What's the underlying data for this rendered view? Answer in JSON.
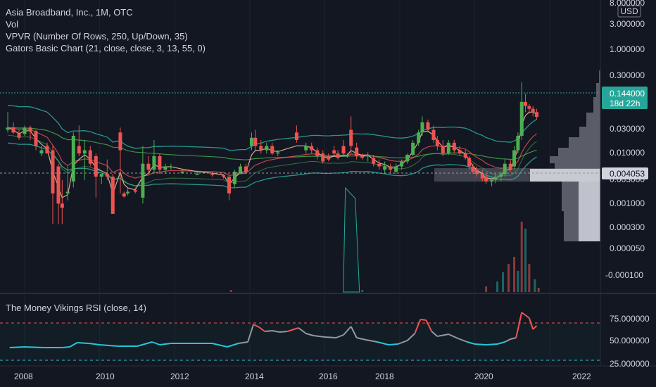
{
  "header": {
    "symbol_line": "Asia Broadband, Inc., 1M, OTC",
    "vol": "Vol",
    "vpvr": "VPVR (Number Of Rows, 250, Up/Down, 35)",
    "gators": "Gators Basic Chart (21, close, close, 3, 13, 55, 0)"
  },
  "price_axis": {
    "currency": "USD",
    "ticks": [
      "8.000000",
      "3.000000",
      "1.000000",
      "0.300000",
      "0.030000",
      "0.010000",
      "0.003000",
      "0.001000",
      "0.000300",
      "0.000050",
      "-0.000100"
    ],
    "current_price": "0.144000",
    "countdown": "18d 22h",
    "crosshair_price": "0.004053"
  },
  "time_axis": {
    "ticks": [
      "2008",
      "2010",
      "2012",
      "2014",
      "2016",
      "2018",
      "2020",
      "2022"
    ]
  },
  "rsi_pane": {
    "title": "The Money Vikings RSI (close, 14)",
    "ticks": [
      "75.000000",
      "50.000000",
      "25.000000"
    ]
  },
  "colors": {
    "background": "#131722",
    "up": "#26a69a",
    "up_bright": "#4caf50",
    "down": "#ef5350",
    "current_price_badge": "#26a69a",
    "crosshair_badge": "#d1d4dc"
  },
  "chart_data": {
    "type": "candlestick",
    "scale": "log",
    "x_range": [
      2007.5,
      2022.5
    ],
    "y_ticks": [
      8,
      3,
      1,
      0.3,
      0.03,
      0.01,
      0.003,
      0.001,
      0.0003,
      5e-05
    ],
    "candles": [
      [
        2007.55,
        0.06,
        0.2,
        0.07,
        0.05
      ],
      [
        2007.7,
        0.07,
        0.1,
        0.05,
        0.045
      ],
      [
        2007.85,
        0.045,
        0.06,
        0.035,
        0.03
      ],
      [
        2008.0,
        0.045,
        0.08,
        0.07,
        0.04
      ],
      [
        2008.15,
        0.07,
        0.08,
        0.055,
        0.03
      ],
      [
        2008.3,
        0.055,
        0.06,
        0.02,
        0.015
      ],
      [
        2008.45,
        0.012,
        0.02,
        0.015,
        0.01
      ],
      [
        2008.6,
        0.02,
        0.025,
        0.012,
        0.012
      ],
      [
        2008.75,
        0.015,
        0.02,
        0.0008,
        0.0001
      ],
      [
        2008.9,
        0.005,
        0.006,
        0.0004,
        0.0001
      ],
      [
        2009.0,
        0.0004,
        0.002,
        0.0003,
        0.0001
      ],
      [
        2009.15,
        0.0008,
        0.005,
        0.0009,
        0.0005
      ],
      [
        2009.3,
        0.0018,
        0.05,
        0.04,
        0.0012
      ],
      [
        2009.45,
        0.02,
        0.08,
        0.012,
        0.01
      ],
      [
        2009.6,
        0.012,
        0.03,
        0.015,
        0.002
      ],
      [
        2009.75,
        0.015,
        0.02,
        0.006,
        0.005
      ],
      [
        2009.9,
        0.01,
        0.012,
        0.0025,
        0.0006
      ],
      [
        2010.05,
        0.0025,
        0.003,
        0.003,
        0.0015
      ],
      [
        2010.2,
        0.003,
        0.008,
        0.0025,
        0.002
      ],
      [
        2010.35,
        0.0025,
        0.003,
        0.0002,
        0.0002
      ],
      [
        2010.55,
        0.05,
        0.07,
        0.015,
        0.0008
      ],
      [
        2010.65,
        0.0008,
        0.0009,
        0.00065,
        0.0006
      ],
      [
        2010.75,
        0.0008,
        0.0011,
        0.0009,
        0.0007
      ],
      [
        2010.95,
        0.001,
        0.0012,
        0.0009,
        0.0008
      ],
      [
        2011.15,
        0.0006,
        0.02,
        0.006,
        0.0004
      ],
      [
        2011.3,
        0.006,
        0.01,
        0.004,
        0.003
      ],
      [
        2011.45,
        0.004,
        0.03,
        0.01,
        0.003
      ],
      [
        2011.6,
        0.01,
        0.012,
        0.004,
        0.003
      ],
      [
        2011.75,
        0.004,
        0.006,
        0.005,
        0.003
      ],
      [
        2011.9,
        0.005,
        0.006,
        0.005,
        0.004
      ],
      [
        2012.2,
        0.0035,
        0.004,
        0.0035,
        0.003
      ],
      [
        2012.6,
        0.003,
        0.0035,
        0.003,
        0.0028
      ],
      [
        2013.0,
        0.003,
        0.0035,
        0.0028,
        0.0025
      ],
      [
        2013.3,
        0.0028,
        0.003,
        0.0025,
        0.0022
      ],
      [
        2013.45,
        0.0025,
        0.0028,
        0.0008,
        0.0005
      ],
      [
        2013.6,
        0.0015,
        0.004,
        0.0035,
        0.0012
      ],
      [
        2013.75,
        0.003,
        0.006,
        0.005,
        0.003
      ],
      [
        2013.9,
        0.005,
        0.006,
        0.0035,
        0.003
      ],
      [
        2014.05,
        0.02,
        0.05,
        0.035,
        0.015
      ],
      [
        2014.15,
        0.035,
        0.06,
        0.02,
        0.015
      ],
      [
        2014.3,
        0.02,
        0.03,
        0.015,
        0.012
      ],
      [
        2014.45,
        0.015,
        0.025,
        0.02,
        0.012
      ],
      [
        2014.6,
        0.02,
        0.025,
        0.012,
        0.011
      ],
      [
        2014.75,
        0.012,
        0.015,
        0.013,
        0.01
      ],
      [
        2015.25,
        0.05,
        0.08,
        0.03,
        0.025
      ],
      [
        2015.5,
        0.015,
        0.025,
        0.02,
        0.012
      ],
      [
        2015.65,
        0.02,
        0.025,
        0.015,
        0.012
      ],
      [
        2015.8,
        0.015,
        0.018,
        0.01,
        0.008
      ],
      [
        2015.95,
        0.012,
        0.015,
        0.007,
        0.006
      ],
      [
        2016.1,
        0.01,
        0.012,
        0.008,
        0.007
      ],
      [
        2016.25,
        0.015,
        0.02,
        0.012,
        0.01
      ],
      [
        2016.35,
        0.012,
        0.015,
        0.009,
        0.008
      ],
      [
        2016.5,
        0.02,
        0.03,
        0.012,
        0.01
      ],
      [
        2016.6,
        0.01,
        0.012,
        0.011,
        0.009
      ],
      [
        2016.7,
        0.06,
        0.15,
        0.02,
        0.012
      ],
      [
        2016.85,
        0.018,
        0.025,
        0.01,
        0.008
      ],
      [
        2017.0,
        0.01,
        0.012,
        0.009,
        0.008
      ],
      [
        2017.15,
        0.01,
        0.013,
        0.011,
        0.007
      ],
      [
        2017.3,
        0.009,
        0.011,
        0.006,
        0.005
      ],
      [
        2017.45,
        0.006,
        0.008,
        0.005,
        0.004
      ],
      [
        2017.6,
        0.004,
        0.007,
        0.005,
        0.003
      ],
      [
        2017.75,
        0.005,
        0.006,
        0.004,
        0.003
      ],
      [
        2017.9,
        0.0035,
        0.006,
        0.005,
        0.003
      ],
      [
        2018.05,
        0.005,
        0.008,
        0.007,
        0.004
      ],
      [
        2018.2,
        0.007,
        0.012,
        0.011,
        0.006
      ],
      [
        2018.35,
        0.011,
        0.03,
        0.025,
        0.01
      ],
      [
        2018.5,
        0.025,
        0.06,
        0.05,
        0.02
      ],
      [
        2018.6,
        0.05,
        0.15,
        0.1,
        0.04
      ],
      [
        2018.75,
        0.1,
        0.12,
        0.06,
        0.05
      ],
      [
        2018.9,
        0.06,
        0.08,
        0.03,
        0.025
      ],
      [
        2019.0,
        0.03,
        0.04,
        0.02,
        0.015
      ],
      [
        2019.15,
        0.02,
        0.03,
        0.012,
        0.01
      ],
      [
        2019.3,
        0.012,
        0.03,
        0.025,
        0.011
      ],
      [
        2019.45,
        0.025,
        0.03,
        0.015,
        0.012
      ],
      [
        2019.6,
        0.015,
        0.02,
        0.012,
        0.01
      ],
      [
        2019.75,
        0.012,
        0.015,
        0.009,
        0.008
      ],
      [
        2019.85,
        0.009,
        0.01,
        0.005,
        0.004
      ],
      [
        2019.95,
        0.005,
        0.006,
        0.0035,
        0.003
      ],
      [
        2020.05,
        0.004,
        0.005,
        0.003,
        0.0025
      ],
      [
        2020.2,
        0.003,
        0.004,
        0.0022,
        0.0018
      ],
      [
        2020.3,
        0.0025,
        0.003,
        0.0018,
        0.0015
      ],
      [
        2020.45,
        0.0018,
        0.0025,
        0.002,
        0.0013
      ],
      [
        2020.55,
        0.002,
        0.003,
        0.0025,
        0.0016
      ],
      [
        2020.7,
        0.0025,
        0.0035,
        0.003,
        0.0018
      ],
      [
        2020.8,
        0.003,
        0.008,
        0.006,
        0.0025
      ],
      [
        2020.95,
        0.006,
        0.008,
        0.004,
        0.0035
      ],
      [
        2021.05,
        0.005,
        0.02,
        0.015,
        0.004
      ],
      [
        2021.15,
        0.015,
        0.05,
        0.04,
        0.012
      ],
      [
        2021.25,
        0.04,
        1.5,
        0.4,
        0.03
      ],
      [
        2021.35,
        0.4,
        0.7,
        0.3,
        0.2
      ],
      [
        2021.45,
        0.3,
        0.35,
        0.25,
        0.18
      ],
      [
        2021.55,
        0.25,
        0.3,
        0.2,
        0.15
      ],
      [
        2021.65,
        0.2,
        0.25,
        0.144,
        0.12
      ]
    ],
    "volume": [
      [
        2013.5,
        3
      ],
      [
        2016.7,
        148
      ],
      [
        2017.0,
        3
      ],
      [
        2020.3,
        8
      ],
      [
        2020.6,
        15
      ],
      [
        2020.75,
        28
      ],
      [
        2020.9,
        40
      ],
      [
        2021.05,
        50
      ],
      [
        2021.15,
        30
      ],
      [
        2021.25,
        100
      ],
      [
        2021.35,
        90
      ],
      [
        2021.45,
        40
      ],
      [
        2021.6,
        18
      ],
      [
        2021.7,
        6
      ]
    ],
    "rsi": [
      [
        2007.6,
        40
      ],
      [
        2008.0,
        41
      ],
      [
        2008.5,
        40
      ],
      [
        2009.0,
        40
      ],
      [
        2009.2,
        41
      ],
      [
        2009.4,
        47
      ],
      [
        2009.7,
        46
      ],
      [
        2010.0,
        44
      ],
      [
        2010.5,
        42
      ],
      [
        2011.0,
        42
      ],
      [
        2011.4,
        48
      ],
      [
        2011.6,
        44
      ],
      [
        2011.9,
        46
      ],
      [
        2012.5,
        46
      ],
      [
        2013.0,
        46
      ],
      [
        2013.4,
        41
      ],
      [
        2013.7,
        46
      ],
      [
        2013.95,
        48
      ],
      [
        2014.1,
        73
      ],
      [
        2014.25,
        69
      ],
      [
        2014.4,
        63
      ],
      [
        2014.6,
        64
      ],
      [
        2014.8,
        62
      ],
      [
        2015.0,
        63
      ],
      [
        2015.3,
        68
      ],
      [
        2015.5,
        60
      ],
      [
        2015.7,
        57
      ],
      [
        2016.0,
        55
      ],
      [
        2016.3,
        54
      ],
      [
        2016.5,
        58
      ],
      [
        2016.7,
        70
      ],
      [
        2016.85,
        54
      ],
      [
        2017.1,
        51
      ],
      [
        2017.4,
        48
      ],
      [
        2017.7,
        44
      ],
      [
        2017.95,
        45
      ],
      [
        2018.2,
        50
      ],
      [
        2018.4,
        60
      ],
      [
        2018.55,
        80
      ],
      [
        2018.7,
        79
      ],
      [
        2018.85,
        63
      ],
      [
        2019.0,
        56
      ],
      [
        2019.3,
        59
      ],
      [
        2019.55,
        53
      ],
      [
        2019.8,
        48
      ],
      [
        2020.0,
        45
      ],
      [
        2020.3,
        44
      ],
      [
        2020.6,
        45
      ],
      [
        2020.8,
        48
      ],
      [
        2020.95,
        52
      ],
      [
        2021.1,
        54
      ],
      [
        2021.25,
        90
      ],
      [
        2021.35,
        86
      ],
      [
        2021.45,
        82
      ],
      [
        2021.55,
        66
      ],
      [
        2021.65,
        71
      ]
    ]
  }
}
